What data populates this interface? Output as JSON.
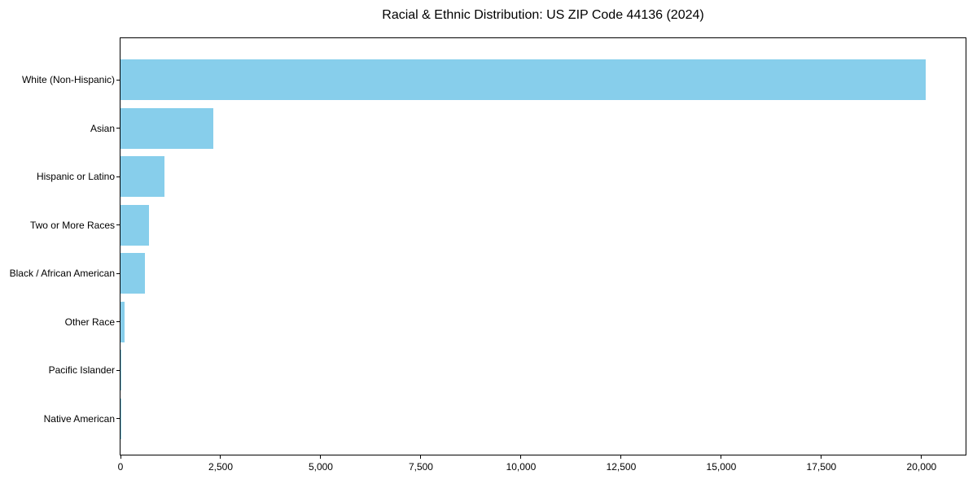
{
  "chart_data": {
    "type": "bar",
    "orientation": "horizontal",
    "title": "Racial & Ethnic Distribution: US ZIP Code 44136 (2024)",
    "categories": [
      "White (Non-Hispanic)",
      "Asian",
      "Hispanic or Latino",
      "Two or More Races",
      "Black / African American",
      "Other Race",
      "Pacific Islander",
      "Native American"
    ],
    "values": [
      20100,
      2320,
      1090,
      720,
      600,
      100,
      10,
      5
    ],
    "x_ticks": [
      0,
      2500,
      5000,
      7500,
      10000,
      12500,
      15000,
      17500,
      20000
    ],
    "x_tick_labels": [
      "0",
      "2,500",
      "5,000",
      "7,500",
      "10,000",
      "12,500",
      "15,000",
      "17,500",
      "20,000"
    ],
    "xlim": [
      0,
      21100
    ],
    "xlabel": "",
    "ylabel": "",
    "grid": false,
    "legend": null,
    "bar_color": "#87CEEB",
    "frame_color": "#000000",
    "text_color": "#000000",
    "background_color": "#ffffff"
  }
}
